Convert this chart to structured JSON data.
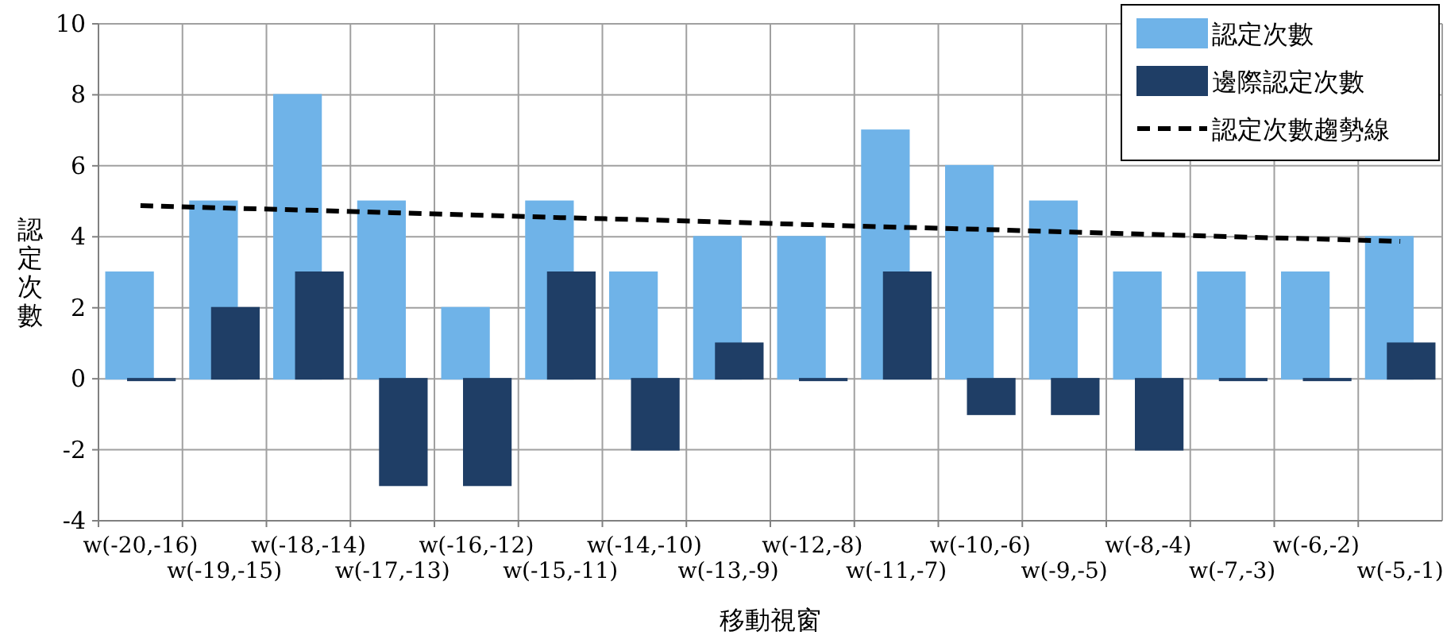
{
  "chart_data": {
    "type": "bar",
    "xlabel": "移動視窗",
    "ylabel": "認定次數",
    "categories": [
      "w(-20,-16)",
      "w(-19,-15)",
      "w(-18,-14)",
      "w(-17,-13)",
      "w(-16,-12)",
      "w(-15,-11)",
      "w(-14,-10)",
      "w(-13,-9)",
      "w(-12,-8)",
      "w(-11,-7)",
      "w(-10,-6)",
      "w(-9,-5)",
      "w(-8,-4)",
      "w(-7,-3)",
      "w(-6,-2)",
      "w(-5,-1)"
    ],
    "series": [
      {
        "name": "認定次數",
        "color": "#6fb3e8",
        "values": [
          3,
          5,
          8,
          5,
          2,
          5,
          3,
          4,
          4,
          7,
          6,
          5,
          3,
          3,
          3,
          4
        ]
      },
      {
        "name": "邊際認定次數",
        "color": "#1f3e66",
        "values": [
          0,
          2,
          3,
          -3,
          -3,
          3,
          -2,
          1,
          0,
          3,
          -1,
          -1,
          -2,
          0,
          0,
          1
        ]
      },
      {
        "name": "認定次數趨勢線",
        "type": "line",
        "color": "#000000",
        "line_style": "dashed",
        "values": [
          4.88,
          4.81,
          4.75,
          4.68,
          4.61,
          4.54,
          4.48,
          4.41,
          4.34,
          4.27,
          4.21,
          4.14,
          4.07,
          4.0,
          3.94,
          3.87
        ]
      }
    ],
    "ylim": [
      -4,
      10
    ],
    "yticks": [
      -4,
      -2,
      0,
      2,
      4,
      6,
      8,
      10
    ],
    "grid": true,
    "legend": "top right"
  }
}
